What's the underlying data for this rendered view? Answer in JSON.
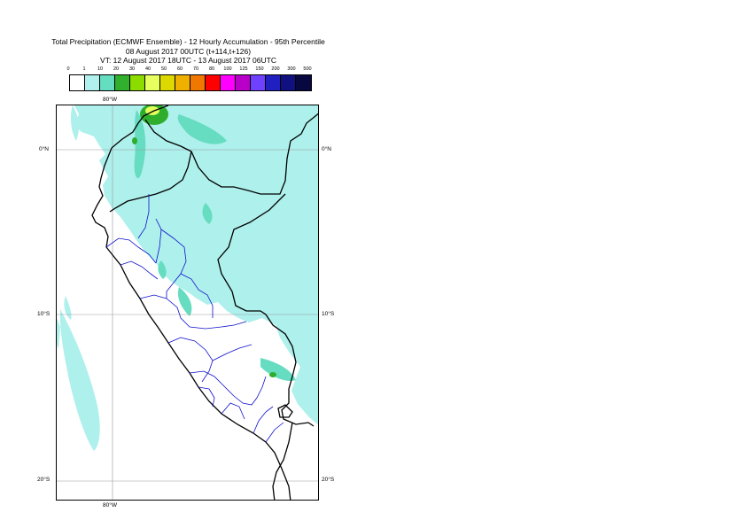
{
  "title": {
    "line1": "Total Precipitation (ECMWF Ensemble) - 12 Hourly Accumulation - 95th Percentile",
    "line2": "08 August 2017 00UTC (t+114,t+126)",
    "line3": "VT: 12 August 2017 18UTC - 13 August 2017 06UTC"
  },
  "scale": {
    "labels": [
      "0",
      "1",
      "10",
      "20",
      "30",
      "40",
      "50",
      "60",
      "70",
      "80",
      "100",
      "125",
      "150",
      "200",
      "300",
      "500"
    ],
    "colors": [
      "#ffffff",
      "#b0f0ee",
      "#64ddc0",
      "#30b02c",
      "#8cdc00",
      "#e8ff60",
      "#ddd800",
      "#f0b000",
      "#f07800",
      "#ff0000",
      "#ff00ff",
      "#b800c8",
      "#7040ff",
      "#2020c0",
      "#101080",
      "#080840"
    ]
  },
  "axes": {
    "lon_top": "80°W",
    "lon_bottom": "80°W",
    "lat_0_left": "0°N",
    "lat_0_right": "0°N",
    "lat_10_left": "10°S",
    "lat_10_right": "10°S",
    "lat_20_left": "20°S",
    "lat_20_right": "20°S"
  },
  "map_colors": {
    "light": "#aef0ec",
    "medium": "#66dcc0",
    "green": "#2eae2c",
    "yellow": "#e4ff5a",
    "coast": "#000000",
    "border": "#1010cc",
    "grid": "#999999"
  }
}
